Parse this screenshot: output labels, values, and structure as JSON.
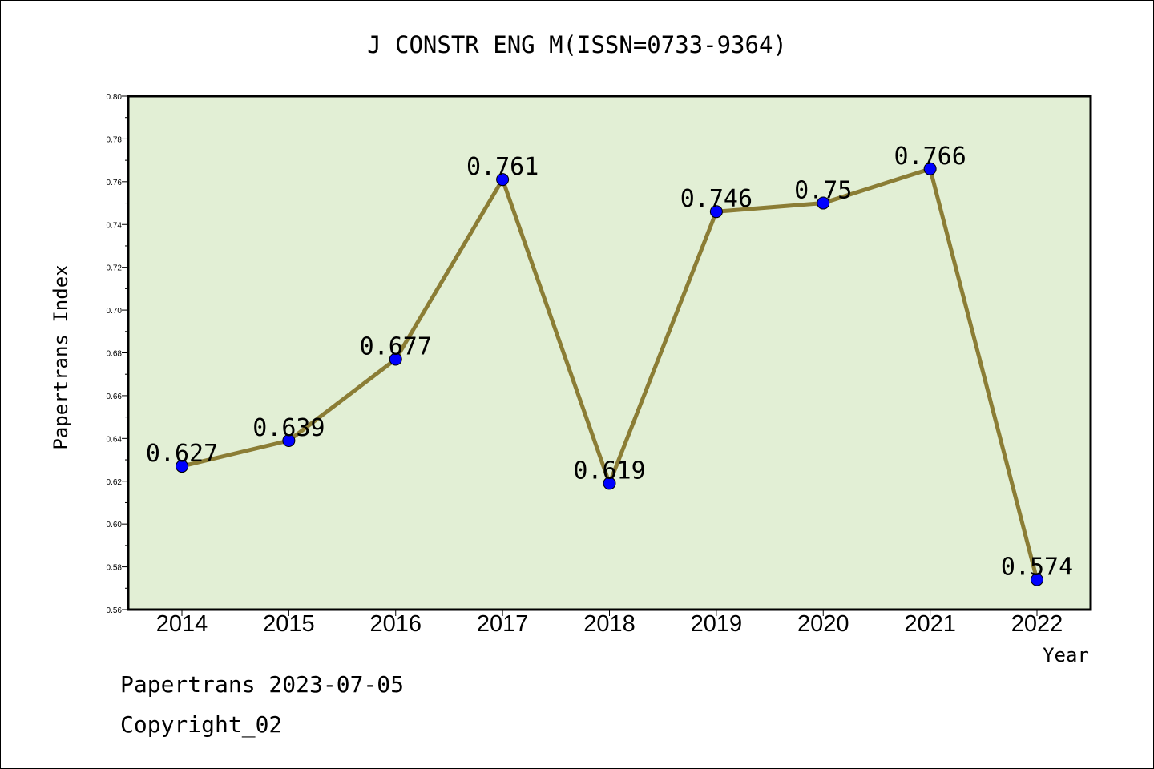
{
  "chart_data": {
    "type": "line",
    "title": "J CONSTR ENG M(ISSN=0733-9364)",
    "xlabel": "Year",
    "ylabel": "Papertrans Index",
    "categories": [
      "2014",
      "2015",
      "2016",
      "2017",
      "2018",
      "2019",
      "2020",
      "2021",
      "2022"
    ],
    "values": [
      0.627,
      0.639,
      0.677,
      0.761,
      0.619,
      0.746,
      0.75,
      0.766,
      0.574
    ],
    "data_labels": [
      "0.627",
      "0.639",
      "0.677",
      "0.761",
      "0.619",
      "0.746",
      "0.75",
      "0.766",
      "0.574"
    ],
    "ylim": [
      0.56,
      0.8
    ],
    "yticks": [
      "0.56",
      "0.58",
      "0.60",
      "0.62",
      "0.64",
      "0.66",
      "0.68",
      "0.70",
      "0.72",
      "0.74",
      "0.76",
      "0.78",
      "0.80"
    ],
    "grid": false,
    "colors": {
      "plot_background": "#e2efd5",
      "line": "#8b7d35",
      "marker": "#0000ff"
    }
  },
  "footer": {
    "line1": "Papertrans 2023-07-05",
    "line2": "Copyright_02"
  }
}
